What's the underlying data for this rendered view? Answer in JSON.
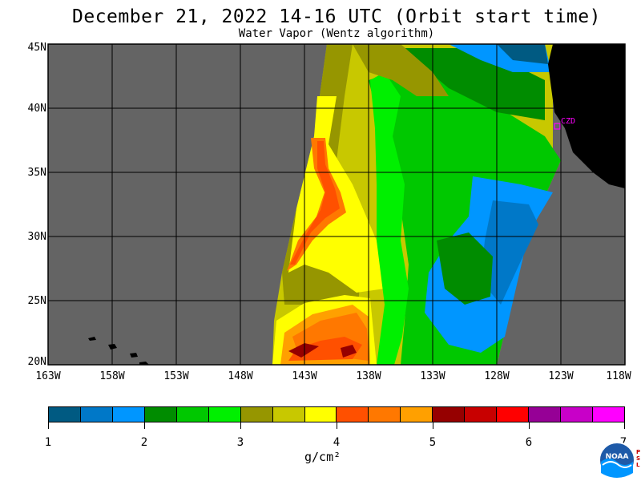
{
  "title": "December 21, 2022  14-16 UTC  (Orbit start time)",
  "subtitle": "Water Vapor (Wentz algorithm)",
  "lat_labels": [
    "45N",
    "40N",
    "35N",
    "30N",
    "25N",
    "20N"
  ],
  "lon_labels": [
    "163W",
    "158W",
    "153W",
    "148W",
    "143W",
    "138W",
    "133W",
    "128W",
    "123W",
    "118W"
  ],
  "station_label": "CZD",
  "colorbar": {
    "labels": [
      "1",
      "2",
      "3",
      "4",
      "5",
      "6",
      "7"
    ],
    "units": "g/cm²",
    "colors": [
      "#005a82",
      "#0078c8",
      "#0096ff",
      "#008c00",
      "#00c800",
      "#00f000",
      "#969600",
      "#c8c800",
      "#ffff00",
      "#ff5000",
      "#ff7800",
      "#ffa000",
      "#960000",
      "#c80000",
      "#ff0000",
      "#960096",
      "#c800c8",
      "#ff00ff"
    ]
  },
  "colors": {
    "missing": "#646464",
    "land": "#000000",
    "grid": "#000000",
    "station": "#ff00ff"
  },
  "logo_text": "NOAA",
  "logo_side_text": "PSL"
}
